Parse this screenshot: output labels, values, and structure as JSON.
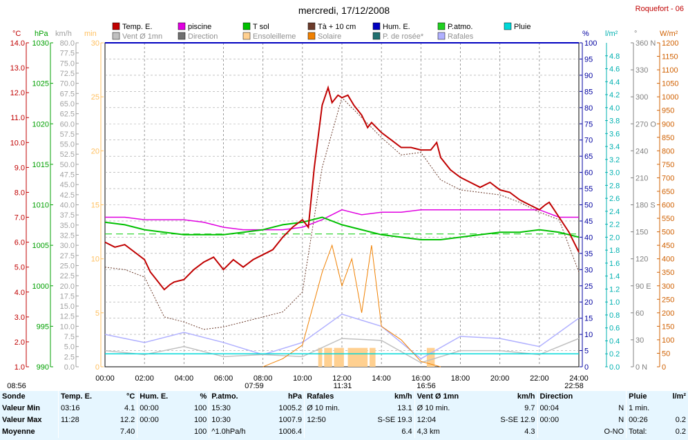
{
  "title": "mercredi, 17/12/2008",
  "station": "Roquefort - 06",
  "legend": [
    {
      "label": "Temp. E.",
      "color": "#c00000"
    },
    {
      "label": "piscine",
      "color": "#e000e0"
    },
    {
      "label": "T sol",
      "color": "#00c000"
    },
    {
      "label": "Tà + 10 cm",
      "color": "#6b3a2a"
    },
    {
      "label": "Hum. E.",
      "color": "#0000c0"
    },
    {
      "label": "P.atmo.",
      "color": "#20d020"
    },
    {
      "label": "Pluie",
      "color": "#00d8d8"
    },
    {
      "label": "Vent Ø 1mn",
      "color": "#c0c0c0"
    },
    {
      "label": "Direction",
      "color": "#707070"
    },
    {
      "label": "Ensoleilleme",
      "color": "#ffd090"
    },
    {
      "label": "Solaire",
      "color": "#f08000"
    },
    {
      "label": "P. de rosée*",
      "color": "#207070"
    },
    {
      "label": "Rafales",
      "color": "#b0b0ff"
    }
  ],
  "axes": {
    "temp": {
      "unit": "°C",
      "ticks": [
        "14.0",
        "13.0",
        "12.0",
        "11.0",
        "10.0",
        "9.0",
        "8.0",
        "7.0",
        "6.0",
        "5.0",
        "4.0",
        "3.0",
        "2.0",
        "1.0"
      ],
      "color": "#c00000"
    },
    "press": {
      "unit": "hPa",
      "ticks": [
        "1030",
        "1025",
        "1020",
        "1015",
        "1010",
        "1005",
        "1000",
        "995",
        "990"
      ],
      "color": "#00a000"
    },
    "wind": {
      "unit": "km/h",
      "ticks": [
        "80.0",
        "77.5",
        "75.0",
        "72.5",
        "70.0",
        "67.5",
        "65.0",
        "62.5",
        "60.0",
        "57.5",
        "55.0",
        "52.5",
        "50.0",
        "47.5",
        "45.0",
        "42.5",
        "40.0",
        "37.5",
        "35.0",
        "32.5",
        "30.0",
        "27.5",
        "25.0",
        "22.5",
        "20.0",
        "17.5",
        "15.0",
        "12.5",
        "10.0",
        "7.5",
        "5.0",
        "2.5",
        "0.0"
      ],
      "color": "#a0a0a0"
    },
    "min": {
      "unit": "min",
      "ticks": [
        "30",
        "25",
        "20",
        "15",
        "10",
        "5",
        "0"
      ],
      "color": "#ffc060"
    },
    "hum": {
      "unit": "%",
      "ticks": [
        "100",
        "95",
        "90",
        "85",
        "80",
        "75",
        "70",
        "65",
        "60",
        "55",
        "50",
        "45",
        "40",
        "35",
        "30",
        "25",
        "20",
        "15",
        "10",
        "5",
        "0"
      ],
      "color": "#0000a0"
    },
    "rain": {
      "unit": "l/m²",
      "ticks": [
        "4.8",
        "4.6",
        "4.4",
        "4.2",
        "4.0",
        "3.8",
        "3.6",
        "3.4",
        "3.2",
        "3.0",
        "2.8",
        "2.6",
        "2.4",
        "2.2",
        "2.0",
        "1.8",
        "1.6",
        "1.4",
        "1.2",
        "1.0",
        "0.8",
        "0.6",
        "0.4",
        "0.2",
        "0.0"
      ],
      "color": "#00b0b0"
    },
    "dir": {
      "unit": "°",
      "ticks": [
        "360 N",
        "330",
        "300",
        "270 O",
        "240",
        "210",
        "180 S",
        "150",
        "120",
        "90  E",
        "60",
        "30",
        "0   N"
      ],
      "color": "#808080"
    },
    "solar": {
      "unit": "W/m²",
      "ticks": [
        "1200",
        "1150",
        "1100",
        "1050",
        "1000",
        "950",
        "900",
        "850",
        "800",
        "750",
        "700",
        "650",
        "600",
        "550",
        "500",
        "450",
        "400",
        "350",
        "300",
        "250",
        "200",
        "150",
        "100",
        "50",
        "0"
      ],
      "color": "#d06000"
    }
  },
  "x_ticks": [
    "00:00",
    "02:00",
    "04:00",
    "06:00",
    "08:00",
    "10:00",
    "12:00",
    "14:00",
    "16:00",
    "18:00",
    "20:00",
    "22:00",
    "24:00"
  ],
  "sun_events": [
    "08:56",
    "07:59",
    "11:31",
    "16:56",
    "22:58"
  ],
  "chart_data": {
    "type": "line",
    "title": "mercredi, 17/12/2008",
    "x_range_hours": [
      0,
      24
    ],
    "series": [
      {
        "name": "Temp. E.",
        "axis": "°C",
        "x": [
          0,
          0.5,
          1,
          1.5,
          2,
          2.3,
          2.5,
          3,
          3.3,
          3.5,
          4,
          4.5,
          5,
          5.5,
          6,
          6.5,
          7,
          7.5,
          8,
          8.5,
          9,
          9.5,
          10,
          10.3,
          10.6,
          11,
          11.3,
          11.5,
          11.8,
          12,
          12.3,
          12.6,
          13,
          13.3,
          13.5,
          14,
          14.5,
          15,
          15.5,
          16,
          16.5,
          16.8,
          17,
          17.5,
          18,
          18.5,
          19,
          19.5,
          20,
          20.5,
          21,
          21.5,
          22,
          22.3,
          22.5,
          23,
          23.5,
          24
        ],
        "y": [
          6.0,
          5.8,
          5.9,
          5.6,
          5.3,
          4.8,
          4.6,
          4.1,
          4.3,
          4.4,
          4.5,
          4.9,
          5.2,
          5.4,
          4.9,
          5.3,
          5.0,
          5.3,
          5.5,
          5.7,
          6.2,
          6.6,
          6.9,
          6.6,
          9.0,
          11.5,
          12.2,
          11.6,
          11.9,
          11.8,
          11.9,
          11.5,
          11.1,
          10.6,
          10.8,
          10.4,
          10.1,
          9.8,
          9.8,
          9.7,
          9.7,
          10.0,
          9.4,
          8.9,
          8.6,
          8.4,
          8.2,
          8.4,
          8.1,
          8.0,
          7.7,
          7.5,
          7.3,
          7.5,
          7.6,
          7.0,
          6.4,
          5.6
        ]
      },
      {
        "name": "T sol",
        "axis": "°C",
        "x": [
          0,
          1,
          2,
          3,
          4,
          5,
          6,
          7,
          8,
          9,
          10,
          11,
          12,
          13,
          14,
          15,
          16,
          17,
          18,
          19,
          20,
          21,
          22,
          23,
          24
        ],
        "y": [
          6.8,
          6.7,
          6.5,
          6.4,
          6.3,
          6.3,
          6.3,
          6.4,
          6.5,
          6.7,
          6.8,
          7.0,
          6.7,
          6.5,
          6.3,
          6.2,
          6.1,
          6.1,
          6.2,
          6.3,
          6.4,
          6.4,
          6.5,
          6.4,
          6.2
        ]
      },
      {
        "name": "piscine",
        "axis": "°C",
        "x": [
          0,
          1,
          2,
          3,
          4,
          5,
          6,
          7,
          8,
          9,
          10,
          11,
          12,
          13,
          14,
          15,
          16,
          17,
          18,
          19,
          20,
          21,
          22,
          23,
          24
        ],
        "y": [
          7.0,
          7.0,
          6.9,
          6.9,
          6.9,
          6.8,
          6.6,
          6.5,
          6.5,
          6.5,
          6.6,
          6.9,
          7.3,
          7.1,
          7.2,
          7.2,
          7.3,
          7.3,
          7.3,
          7.3,
          7.3,
          7.3,
          7.3,
          7.0,
          7.0
        ]
      },
      {
        "name": "Tà + 10 cm",
        "axis": "°C",
        "x": [
          0,
          1,
          2,
          3,
          4,
          5,
          6,
          7,
          8,
          9,
          10,
          11,
          12,
          13,
          14,
          15,
          16,
          17,
          18,
          19,
          20,
          21,
          22,
          23,
          24
        ],
        "y": [
          5.0,
          4.9,
          4.6,
          3.0,
          2.8,
          2.5,
          2.6,
          2.8,
          3.0,
          3.2,
          4.0,
          9.0,
          11.8,
          11.0,
          10.2,
          9.5,
          9.6,
          8.5,
          8.1,
          8.0,
          7.9,
          7.6,
          7.2,
          6.9,
          4.8
        ]
      },
      {
        "name": "P.atmo.",
        "axis": "hPa",
        "x": [
          0,
          4,
          8,
          12,
          16,
          20,
          24
        ],
        "y": [
          1006.4,
          1006.4,
          1006.4,
          1006.4,
          1006.4,
          1006.4,
          1006.4
        ]
      },
      {
        "name": "Vent Ø 1mn",
        "axis": "km/h",
        "x": [
          0,
          2,
          4,
          6,
          8,
          10,
          12,
          14,
          16,
          18,
          20,
          22,
          24
        ],
        "y": [
          4.0,
          3.0,
          5.0,
          2.5,
          3.0,
          2.5,
          7.0,
          6.5,
          1.0,
          4.0,
          4.0,
          3.0,
          7.0
        ]
      },
      {
        "name": "Rafales",
        "axis": "km/h",
        "x": [
          0,
          2,
          4,
          6,
          8,
          10,
          12,
          14,
          16,
          18,
          20,
          22,
          24
        ],
        "y": [
          8.0,
          6.0,
          8.5,
          6.0,
          3.0,
          6.0,
          13.0,
          10.0,
          2.0,
          7.5,
          7.0,
          5.0,
          12.0
        ]
      },
      {
        "name": "Solaire",
        "axis": "W/m²",
        "x": [
          8,
          9,
          10,
          11,
          11.5,
          12,
          12.5,
          13,
          13.5,
          14,
          15,
          16,
          17
        ],
        "y": [
          0,
          30,
          80,
          350,
          450,
          300,
          400,
          200,
          450,
          150,
          100,
          20,
          0
        ]
      },
      {
        "name": "Pluie",
        "axis": "l/m²",
        "x": [
          0,
          24
        ],
        "y": [
          0.2,
          0.2
        ]
      }
    ]
  },
  "summary": {
    "headers": [
      {
        "name": "Sonde",
        "unit": ""
      },
      {
        "name": "Temp. E.",
        "unit": "°C"
      },
      {
        "name": "Hum. E.",
        "unit": "%"
      },
      {
        "name": "P.atmo.",
        "unit": "hPa"
      },
      {
        "name": "Rafales",
        "unit": "km/h"
      },
      {
        "name": "Vent Ø 1mn",
        "unit": "km/h"
      },
      {
        "name": "Direction",
        "unit": ""
      },
      {
        "name": "Pluie",
        "unit": "l/m²"
      }
    ],
    "rows": [
      {
        "label": "Valeur Min",
        "cells": [
          [
            "03:16",
            "4.1"
          ],
          [
            "00:00",
            "100"
          ],
          [
            "15:30",
            "1005.2"
          ],
          [
            "Ø 10 min.",
            "13.1"
          ],
          [
            "Ø 10 min.",
            "9.7"
          ],
          [
            "00:04",
            "N"
          ],
          [
            "1 min.",
            ""
          ]
        ]
      },
      {
        "label": "Valeur Max",
        "cells": [
          [
            "11:28",
            "12.2"
          ],
          [
            "00:00",
            "100"
          ],
          [
            "10:30",
            "1007.9"
          ],
          [
            "12:50",
            "S-SE 19.3"
          ],
          [
            "12:04",
            "S-SE 12.9"
          ],
          [
            "00:00",
            "N"
          ],
          [
            "00:26",
            "0.2"
          ]
        ]
      },
      {
        "label": "Moyenne",
        "cells": [
          [
            "",
            "7.40"
          ],
          [
            "",
            "100"
          ],
          [
            "^1.0hPa/h",
            "1006.4"
          ],
          [
            "",
            "6.4"
          ],
          [
            "4,3 km",
            "4.3"
          ],
          [
            "",
            "O-NO"
          ],
          [
            "Total:",
            "0.2"
          ]
        ]
      }
    ]
  }
}
